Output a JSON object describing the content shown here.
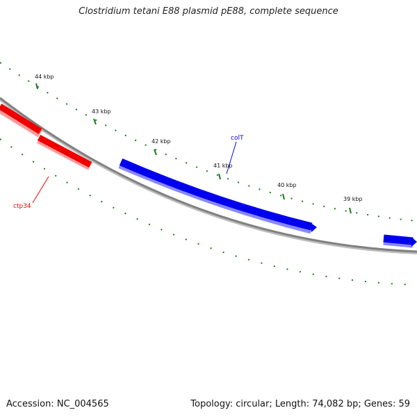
{
  "title": "Clostridium tetani E88 plasmid pE88, complete sequence",
  "footer": {
    "accession": "Accession: NC_004565",
    "summary": "Topology: circular; Length: 74,082 bp; Genes: 59"
  },
  "ruler_labels": [
    "44 kbp",
    "43 kbp",
    "42 kbp",
    "41 kbp",
    "40 kbp",
    "39 kbp"
  ],
  "gene_labels": {
    "colT": "colT",
    "ctp34": "ctp34"
  },
  "colors": {
    "forward_gene": "#0000ee",
    "reverse_gene": "#ee0000",
    "backbone": "#808080",
    "ticks": "#1a7a1a"
  }
}
